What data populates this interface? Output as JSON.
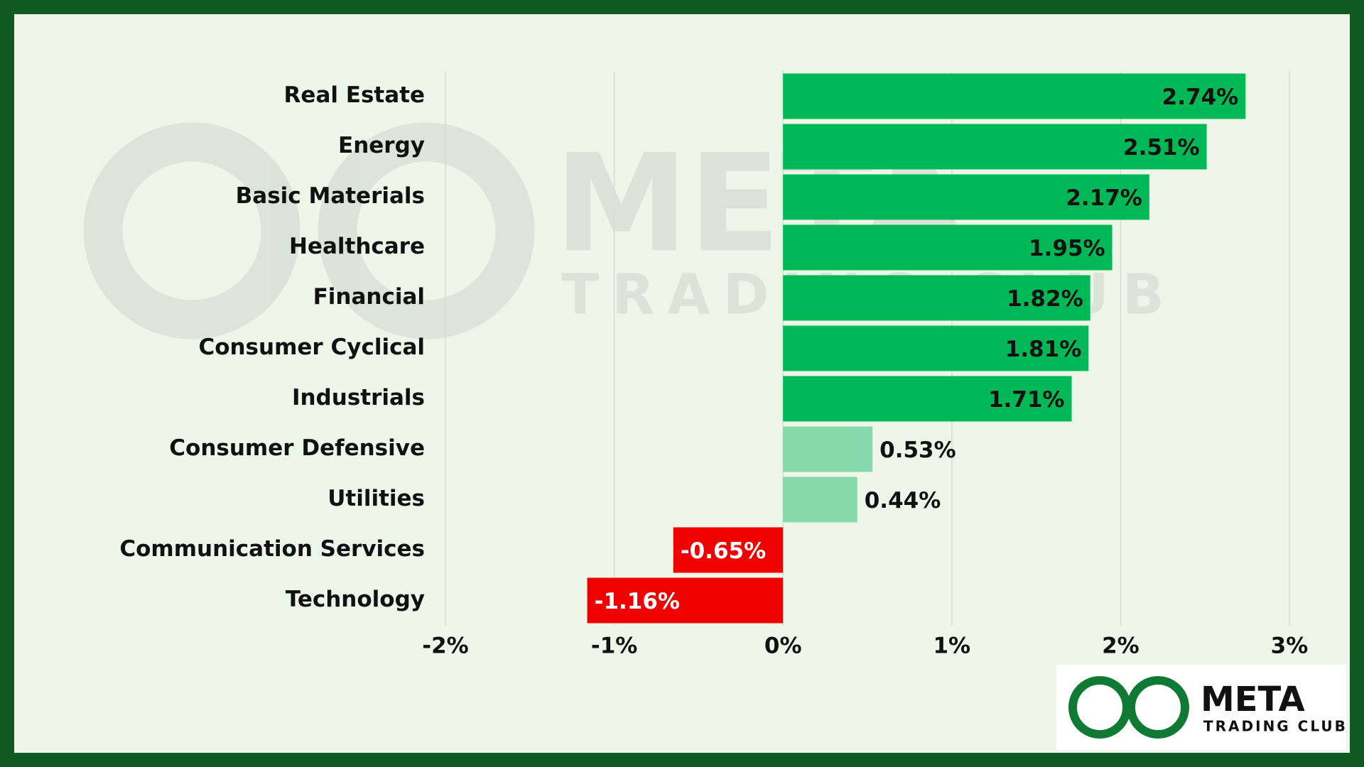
{
  "chart_data": {
    "type": "barh",
    "categories": [
      "Real Estate",
      "Energy",
      "Basic Materials",
      "Healthcare",
      "Financial",
      "Consumer Cyclical",
      "Industrials",
      "Consumer Defensive",
      "Utilities",
      "Communication Services",
      "Technology"
    ],
    "values": [
      2.74,
      2.51,
      2.17,
      1.95,
      1.82,
      1.81,
      1.71,
      0.53,
      0.44,
      -0.65,
      -1.16
    ],
    "value_labels": [
      "2.74%",
      "2.51%",
      "2.17%",
      "1.95%",
      "1.82%",
      "1.81%",
      "1.71%",
      "0.53%",
      "0.44%",
      "-0.65%",
      "-1.16%"
    ],
    "colors": [
      "#00b956",
      "#00b956",
      "#00b956",
      "#00b956",
      "#00b956",
      "#00b956",
      "#00b956",
      "#86d9ab",
      "#86d9ab",
      "#f00000",
      "#f00000"
    ],
    "xlim": [
      -2,
      3
    ],
    "xticks": [
      {
        "value": -2,
        "label": "-2%"
      },
      {
        "value": -1,
        "label": "-1%"
      },
      {
        "value": 0,
        "label": "0%"
      },
      {
        "value": 1,
        "label": "1%"
      },
      {
        "value": 2,
        "label": "2%"
      },
      {
        "value": 3,
        "label": "3%"
      }
    ],
    "grid": true
  },
  "logo": {
    "name": "META",
    "subtitle": "TRADING CLUB"
  }
}
